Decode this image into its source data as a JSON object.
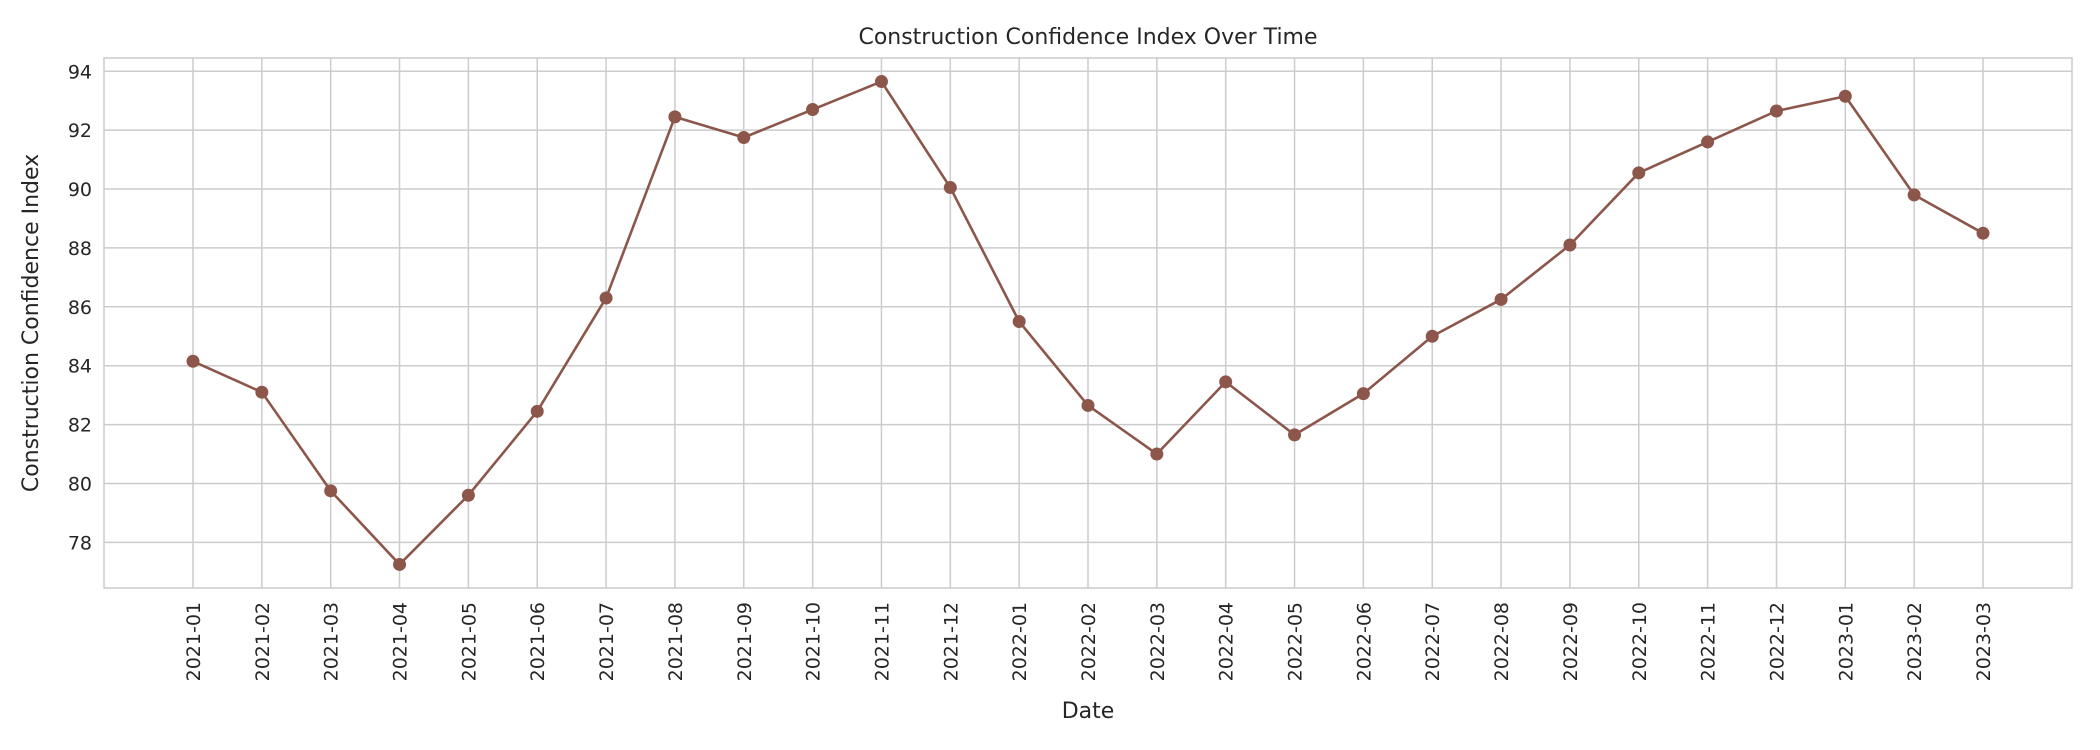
{
  "chart_data": {
    "type": "line",
    "title": "Construction Confidence Index Over Time",
    "xlabel": "Date",
    "ylabel": "Construction Confidence Index",
    "categories": [
      "2021-01",
      "2021-02",
      "2021-03",
      "2021-04",
      "2021-05",
      "2021-06",
      "2021-07",
      "2021-08",
      "2021-09",
      "2021-10",
      "2021-11",
      "2021-12",
      "2022-01",
      "2022-02",
      "2022-03",
      "2022-04",
      "2022-05",
      "2022-06",
      "2022-07",
      "2022-08",
      "2022-09",
      "2022-10",
      "2022-11",
      "2022-12",
      "2023-01",
      "2023-02",
      "2023-03"
    ],
    "series": [
      {
        "values": [
          84.15,
          83.1,
          79.75,
          77.25,
          79.6,
          82.45,
          86.3,
          92.45,
          91.75,
          92.7,
          93.65,
          90.05,
          85.5,
          82.65,
          81.0,
          83.45,
          81.65,
          83.05,
          85.0,
          86.25,
          88.1,
          90.55,
          91.6,
          92.65,
          93.15,
          89.8,
          88.5
        ]
      }
    ],
    "yticks": [
      78,
      80,
      82,
      84,
      86,
      88,
      90,
      92,
      94
    ],
    "ylim": [
      76.45,
      94.45
    ],
    "grid": true,
    "colors": {
      "line": "#8c564b",
      "grid": "#cccccc",
      "spine": "#cccccc",
      "text": "#262626"
    }
  }
}
